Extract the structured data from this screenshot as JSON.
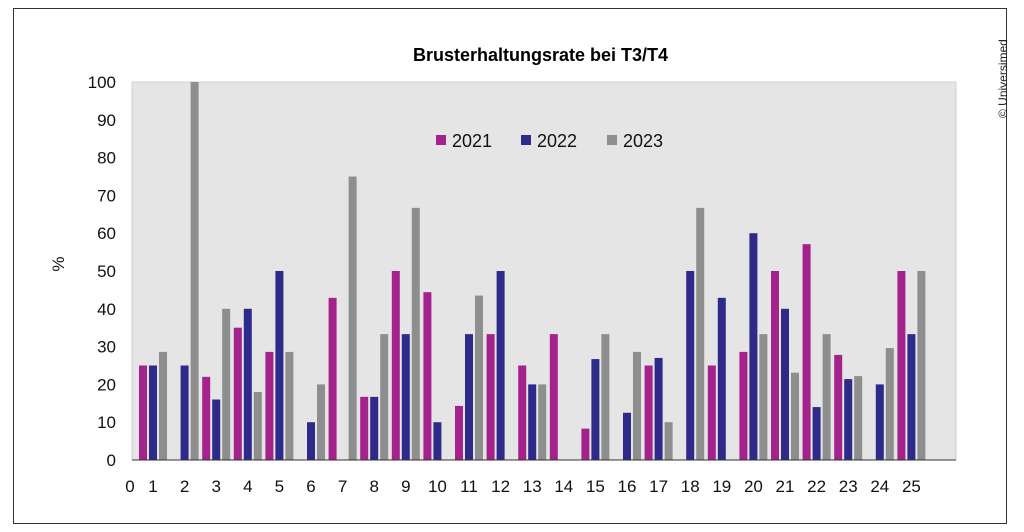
{
  "page": {
    "copyright": "© Universimed"
  },
  "chart_data": {
    "type": "bar",
    "title": "Brusterhaltungsrate bei T3/T4",
    "xlabel": "",
    "ylabel": "%",
    "ylim": [
      0,
      100
    ],
    "yticks": [
      0,
      10,
      20,
      30,
      40,
      50,
      60,
      70,
      80,
      90,
      100
    ],
    "grid": false,
    "legend_position": "top-center",
    "categories": [
      "0",
      "1",
      "2",
      "3",
      "4",
      "5",
      "6",
      "7",
      "8",
      "9",
      "10",
      "11",
      "12",
      "13",
      "14",
      "15",
      "16",
      "17",
      "18",
      "19",
      "20",
      "21",
      "22",
      "23",
      "24",
      "25"
    ],
    "series": [
      {
        "name": "2021",
        "color": "#a3228b",
        "values": [
          null,
          25,
          null,
          22,
          35,
          28.6,
          null,
          42.9,
          16.7,
          50,
          44.4,
          14.3,
          33.3,
          25,
          33.3,
          8.3,
          null,
          25,
          null,
          25,
          28.6,
          50,
          57.1,
          27.8,
          null,
          50
        ]
      },
      {
        "name": "2022",
        "color": "#2e2a8a",
        "values": [
          null,
          25,
          25,
          16,
          40,
          50,
          10,
          null,
          16.7,
          33.3,
          10,
          33.3,
          50,
          20,
          null,
          26.7,
          12.5,
          27,
          50,
          42.9,
          60,
          40,
          14,
          21.4,
          20,
          33.3
        ]
      },
      {
        "name": "2023",
        "color": "#8e8e8e",
        "values": [
          null,
          28.6,
          100,
          40,
          18,
          28.6,
          20,
          75,
          33.3,
          66.7,
          null,
          43.5,
          null,
          20,
          null,
          33.3,
          28.6,
          10,
          66.7,
          null,
          33.3,
          23.1,
          33.3,
          22.2,
          29.6,
          50
        ]
      }
    ]
  }
}
